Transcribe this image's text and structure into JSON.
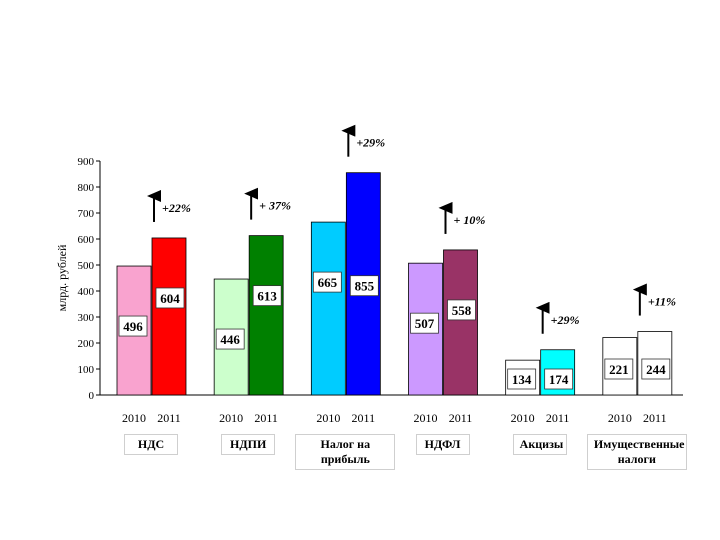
{
  "chart_data": {
    "type": "bar",
    "ylabel": "млрд. рублей",
    "ylim": [
      0,
      900
    ],
    "yticks": [
      0,
      100,
      200,
      300,
      400,
      500,
      600,
      700,
      800,
      900
    ],
    "series_names": [
      "2010",
      "2011"
    ],
    "groups": [
      {
        "category": "НДС",
        "values": [
          496,
          604
        ],
        "labels": [
          "496",
          "604"
        ],
        "colors": [
          "#f9a3cf",
          "#ff0000"
        ],
        "growth": "+22%"
      },
      {
        "category": "НДПИ",
        "values": [
          446,
          613
        ],
        "labels": [
          "446",
          "613"
        ],
        "colors": [
          "#ccffcc",
          "#008000"
        ],
        "growth": "+ 37%"
      },
      {
        "category": "Налог на прибыль",
        "values": [
          665,
          855
        ],
        "labels": [
          "665",
          "855"
        ],
        "colors": [
          "#00ccff",
          "#0000ff"
        ],
        "growth": "+29%"
      },
      {
        "category": "НДФЛ",
        "values": [
          507,
          558
        ],
        "labels": [
          "507",
          "558"
        ],
        "colors": [
          "#cc99ff",
          "#993366"
        ],
        "growth": "+ 10%"
      },
      {
        "category": "Акцизы",
        "values": [
          134,
          174
        ],
        "labels": [
          "134",
          "174"
        ],
        "colors": [
          "#ffffff",
          "#00ffff"
        ],
        "growth": "+29%"
      },
      {
        "category": "Имущественные налоги",
        "values": [
          221,
          244
        ],
        "labels": [
          "221",
          "244"
        ],
        "colors": [
          "#ffffff",
          "#ffffff"
        ],
        "growth": "+11%"
      }
    ]
  }
}
